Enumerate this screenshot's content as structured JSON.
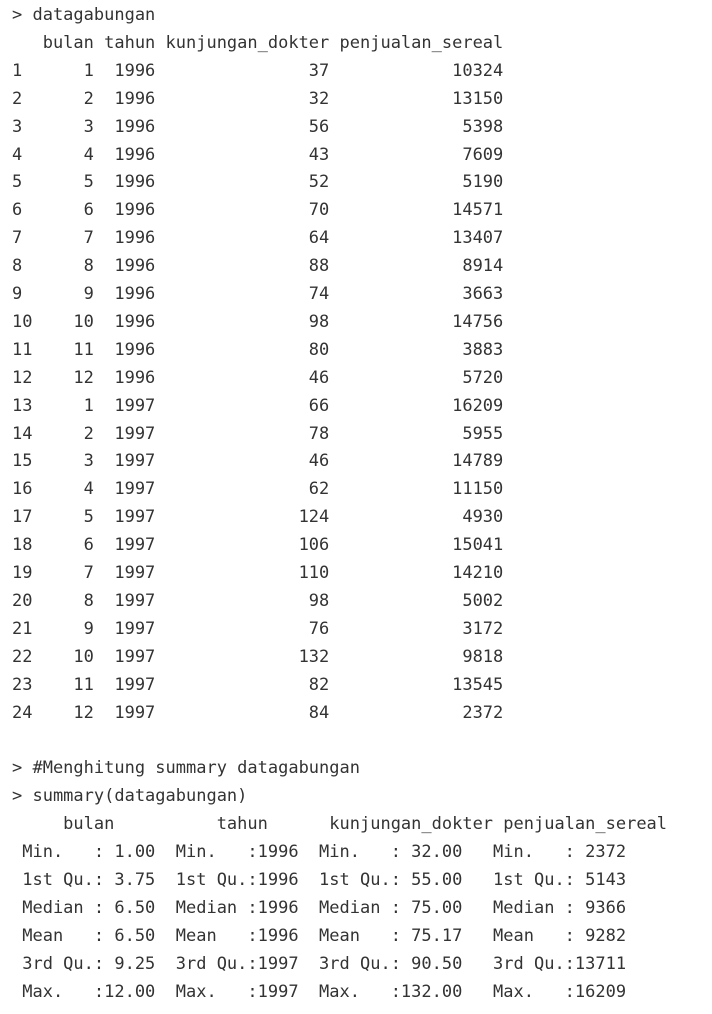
{
  "console": {
    "lines": [
      "> datagabungan",
      "   bulan tahun kunjungan_dokter penjualan_sereal",
      "1      1  1996               37            10324",
      "2      2  1996               32            13150",
      "3      3  1996               56             5398",
      "4      4  1996               43             7609",
      "5      5  1996               52             5190",
      "6      6  1996               70            14571",
      "7      7  1996               64            13407",
      "8      8  1996               88             8914",
      "9      9  1996               74             3663",
      "10    10  1996               98            14756",
      "11    11  1996               80             3883",
      "12    12  1996               46             5720",
      "13     1  1997               66            16209",
      "14     2  1997               78             5955",
      "15     3  1997               46            14789",
      "16     4  1997               62            11150",
      "17     5  1997              124             4930",
      "18     6  1997              106            15041",
      "19     7  1997              110            14210",
      "20     8  1997               98             5002",
      "21     9  1997               76             3172",
      "22    10  1997              132             9818",
      "23    11  1997               82            13545",
      "24    12  1997               84             2372",
      "",
      "> #Menghitung summary datagabungan",
      "> summary(datagabungan)",
      "     bulan          tahun      kunjungan_dokter penjualan_sereal",
      " Min.   : 1.00  Min.   :1996  Min.   : 32.00   Min.   : 2372   ",
      " 1st Qu.: 3.75  1st Qu.:1996  1st Qu.: 55.00   1st Qu.: 5143   ",
      " Median : 6.50  Median :1996  Median : 75.00   Median : 9366   ",
      " Mean   : 6.50  Mean   :1996  Mean   : 75.17   Mean   : 9282   ",
      " 3rd Qu.: 9.25  3rd Qu.:1997  3rd Qu.: 90.50   3rd Qu.:13711   ",
      " Max.   :12.00  Max.   :1997  Max.   :132.00   Max.   :16209   "
    ]
  }
}
